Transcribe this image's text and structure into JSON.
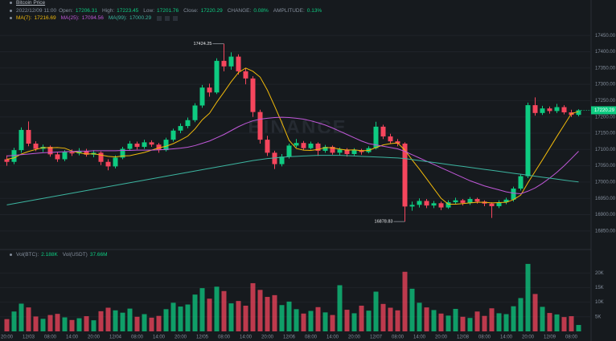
{
  "chart_data": {
    "type": "candlestick",
    "title": "Bitcoin Price",
    "time": "2022/12/09 11:00",
    "info": [
      {
        "label": "Open:",
        "value": "17206.31"
      },
      {
        "label": "High:",
        "value": "17223.45"
      },
      {
        "label": "Low:",
        "value": "17201.76"
      },
      {
        "label": "Close:",
        "value": "17220.29"
      },
      {
        "label": "CHANGE:",
        "value": "0.08%"
      },
      {
        "label": "AMPLITUDE:",
        "value": "0.13%"
      }
    ],
    "watermark": "BINANCE",
    "categories": [
      "20:00",
      null,
      null,
      "12/03",
      null,
      null,
      "08:00",
      null,
      null,
      "14:00",
      null,
      null,
      "20:00",
      null,
      null,
      "12/04",
      null,
      null,
      "08:00",
      null,
      null,
      "14:00",
      null,
      null,
      "20:00",
      null,
      null,
      "12/05",
      null,
      null,
      "08:00",
      null,
      null,
      "14:00",
      null,
      null,
      "20:00",
      null,
      null,
      "12/06",
      null,
      null,
      "08:00",
      null,
      null,
      "14:00",
      null,
      null,
      "20:00",
      null,
      null,
      "12/07",
      null,
      null,
      "08:00",
      null,
      null,
      "14:00",
      null,
      null,
      "20:00",
      null,
      null,
      "12/08",
      null,
      null,
      "08:00",
      null,
      null,
      "14:00",
      null,
      null,
      "20:00",
      null,
      null,
      "12/09",
      null,
      null,
      "08:00",
      null
    ],
    "open": [
      17070,
      17062,
      17098,
      17160,
      17118,
      17102,
      17108,
      17085,
      17070,
      17092,
      17088,
      17096,
      17084,
      17090,
      17062,
      17048,
      17075,
      17102,
      17118,
      17108,
      17122,
      17115,
      17098,
      17130,
      17158,
      17172,
      17190,
      17235,
      17290,
      17275,
      17372,
      17355,
      17385,
      17340,
      17318,
      17215,
      17130,
      17090,
      17055,
      17078,
      17112,
      17120,
      17104,
      17118,
      17096,
      17108,
      17090,
      17100,
      17086,
      17098,
      17092,
      17104,
      17170,
      17140,
      17125,
      17118,
      16925,
      16930,
      16942,
      16928,
      16935,
      16922,
      16938,
      16944,
      16936,
      16948,
      16940,
      16934,
      16926,
      16938,
      16946,
      16980,
      17018,
      17236,
      17212,
      17226,
      17218,
      17230,
      17214,
      17206.31
    ],
    "high": [
      17082,
      17105,
      17168,
      17186,
      17125,
      17115,
      17112,
      17092,
      17098,
      17100,
      17104,
      17102,
      17098,
      17094,
      17070,
      17082,
      17108,
      17126,
      17124,
      17130,
      17128,
      17120,
      17136,
      17164,
      17180,
      17198,
      17242,
      17298,
      17302,
      17380,
      17424.25,
      17398,
      17392,
      17350,
      17325,
      17222,
      17142,
      17096,
      17086,
      17118,
      17132,
      17126,
      17124,
      17122,
      17114,
      17112,
      17106,
      17104,
      17104,
      17102,
      17110,
      17185,
      17176,
      17148,
      17132,
      17122,
      16940,
      16950,
      16948,
      16942,
      16940,
      16944,
      16952,
      16948,
      16954,
      16952,
      16944,
      16938,
      16944,
      16952,
      16986,
      17024,
      17244,
      17260,
      17234,
      17232,
      17240,
      17236,
      17222,
      17223.45
    ],
    "low": [
      17050,
      17055,
      17090,
      17110,
      17095,
      17092,
      17078,
      17062,
      17064,
      17080,
      17082,
      17078,
      17076,
      17052,
      17036,
      17042,
      17070,
      17096,
      17100,
      17102,
      17108,
      17090,
      17094,
      17124,
      17150,
      17165,
      17184,
      17228,
      17262,
      17270,
      17340,
      17345,
      17330,
      17300,
      17200,
      17118,
      17080,
      17040,
      17048,
      17072,
      17106,
      17098,
      17100,
      17080,
      17090,
      17084,
      17082,
      17078,
      17080,
      17084,
      17088,
      17100,
      17132,
      17118,
      17110,
      16878.83,
      16912,
      16922,
      16920,
      16920,
      16914,
      16918,
      16932,
      16928,
      16930,
      16934,
      16926,
      16890,
      16920,
      16932,
      16940,
      16974,
      17012,
      17204,
      17206,
      17210,
      17212,
      17208,
      17200,
      17201.76
    ],
    "close": [
      17062,
      17098,
      17160,
      17118,
      17102,
      17108,
      17085,
      17070,
      17092,
      17088,
      17096,
      17084,
      17090,
      17062,
      17048,
      17075,
      17102,
      17118,
      17108,
      17122,
      17115,
      17098,
      17130,
      17158,
      17172,
      17190,
      17235,
      17290,
      17275,
      17372,
      17355,
      17385,
      17340,
      17318,
      17215,
      17130,
      17090,
      17055,
      17078,
      17112,
      17120,
      17104,
      17118,
      17096,
      17108,
      17090,
      17100,
      17086,
      17098,
      17092,
      17104,
      17170,
      17140,
      17125,
      17118,
      16925,
      16930,
      16942,
      16928,
      16935,
      16922,
      16938,
      16944,
      16936,
      16948,
      16940,
      16934,
      16926,
      16938,
      16946,
      16980,
      17018,
      17236,
      17212,
      17226,
      17218,
      17230,
      17214,
      17206.31,
      17220.29
    ],
    "up_color": "#0ecb81",
    "down_color": "#f6465d",
    "series": [
      {
        "name": "MA(7):",
        "color": "#f0b90b",
        "values": [
          17070,
          17074,
          17086,
          17094,
          17100,
          17106,
          17105,
          17106,
          17104,
          17095,
          17090,
          17086,
          17087,
          17083,
          17079,
          17077,
          17080,
          17081,
          17086,
          17091,
          17098,
          17105,
          17110,
          17118,
          17129,
          17141,
          17163,
          17191,
          17211,
          17245,
          17276,
          17308,
          17336,
          17350,
          17340,
          17322,
          17282,
          17233,
          17182,
          17128,
          17103,
          17098,
          17097,
          17100,
          17106,
          17105,
          17101,
          17098,
          17099,
          17096,
          17097,
          17106,
          17114,
          17118,
          17120,
          17098,
          17068,
          17040,
          17010,
          16980,
          16950,
          16932,
          16932,
          16934,
          16936,
          16938,
          16938,
          16936,
          16937,
          16938,
          16946,
          16960,
          16998,
          17033,
          17068,
          17104,
          17140,
          17175,
          17210,
          17216.69
        ]
      },
      {
        "name": "MA(25):",
        "color": "#c058d8",
        "values": [
          17080,
          17082,
          17084,
          17086,
          17088,
          17090,
          17091,
          17092,
          17093,
          17094,
          17095,
          17095,
          17096,
          17096,
          17096,
          17096,
          17097,
          17097,
          17098,
          17098,
          17098,
          17099,
          17100,
          17102,
          17104,
          17107,
          17112,
          17119,
          17126,
          17136,
          17146,
          17158,
          17170,
          17180,
          17188,
          17193,
          17196,
          17198,
          17199,
          17198,
          17196,
          17193,
          17188,
          17182,
          17175,
          17166,
          17156,
          17146,
          17136,
          17126,
          17118,
          17114,
          17110,
          17106,
          17102,
          17094,
          17084,
          17074,
          17064,
          17054,
          17044,
          17034,
          17024,
          17014,
          17004,
          16996,
          16988,
          16982,
          16976,
          16970,
          16966,
          16964,
          16972,
          16982,
          16996,
          17012,
          17030,
          17050,
          17072,
          17094.56
        ]
      },
      {
        "name": "MA(99):",
        "color": "#3cb5a0",
        "values": [
          16930,
          16934,
          16938,
          16942,
          16946,
          16950,
          16954,
          16958,
          16962,
          16966,
          16970,
          16974,
          16978,
          16982,
          16986,
          16990,
          16994,
          16998,
          17002,
          17006,
          17010,
          17014,
          17018,
          17022,
          17026,
          17030,
          17034,
          17038,
          17042,
          17046,
          17050,
          17054,
          17058,
          17062,
          17066,
          17069,
          17072,
          17074,
          17076,
          17078,
          17079,
          17080,
          17081,
          17082,
          17082,
          17082,
          17082,
          17081,
          17080,
          17079,
          17078,
          17077,
          17076,
          17075,
          17074,
          17072,
          17069,
          17066,
          17063,
          17060,
          17057,
          17054,
          17051,
          17048,
          17045,
          17042,
          17039,
          17036,
          17033,
          17030,
          17027,
          17024,
          17021,
          17018,
          17015,
          17012,
          17009,
          17006,
          17003,
          17000.29
        ]
      }
    ],
    "ylim": [
      16820,
      17480
    ],
    "yticks": [
      {
        "value": 16850,
        "label": "16850.00"
      },
      {
        "value": 16900,
        "label": "16900.00"
      },
      {
        "value": 16950,
        "label": "16950.00"
      },
      {
        "value": 17000,
        "label": "17000.00"
      },
      {
        "value": 17050,
        "label": "17050.00"
      },
      {
        "value": 17100,
        "label": "17100.00"
      },
      {
        "value": 17150,
        "label": "17150.00"
      },
      {
        "value": 17200,
        "label": "17200.00"
      },
      {
        "value": 17250,
        "label": "17250.00"
      },
      {
        "value": 17300,
        "label": "17300.00"
      },
      {
        "value": 17350,
        "label": "17350.00"
      },
      {
        "value": 17400,
        "label": "17400.00"
      },
      {
        "value": 17450,
        "label": "17450.00"
      }
    ],
    "grid": true,
    "volume": {
      "values": [
        4200,
        6800,
        9500,
        8200,
        5100,
        4300,
        5600,
        6000,
        4800,
        3900,
        4500,
        5200,
        3800,
        6900,
        8100,
        7200,
        6400,
        7800,
        5000,
        5900,
        4700,
        5300,
        7600,
        9800,
        8500,
        9200,
        12600,
        14800,
        11200,
        15300,
        13800,
        9600,
        10400,
        8800,
        16500,
        14200,
        11800,
        12400,
        9000,
        10200,
        7600,
        6100,
        7000,
        8300,
        6500,
        5600,
        15800,
        7400,
        6200,
        8800,
        7100,
        13600,
        9400,
        8100,
        7200,
        20400,
        14600,
        9800,
        8200,
        7300,
        6100,
        5400,
        7700,
        5000,
        4600,
        6800,
        5300,
        7900,
        6200,
        5900,
        8600,
        11400,
        23100,
        12800,
        8400,
        6300,
        5800,
        4900,
        5200,
        2188
      ],
      "ylim": [
        0,
        25000
      ],
      "yticks": [
        {
          "value": 5000,
          "label": "5K"
        },
        {
          "value": 10000,
          "label": "10K"
        },
        {
          "value": 15000,
          "label": "15K"
        },
        {
          "value": 20000,
          "label": "20K"
        }
      ],
      "legend": [
        {
          "label": "Vol(BTC):",
          "value": "2.188K"
        },
        {
          "label": "Vol(USDT)",
          "value": "37.66M"
        }
      ]
    }
  }
}
